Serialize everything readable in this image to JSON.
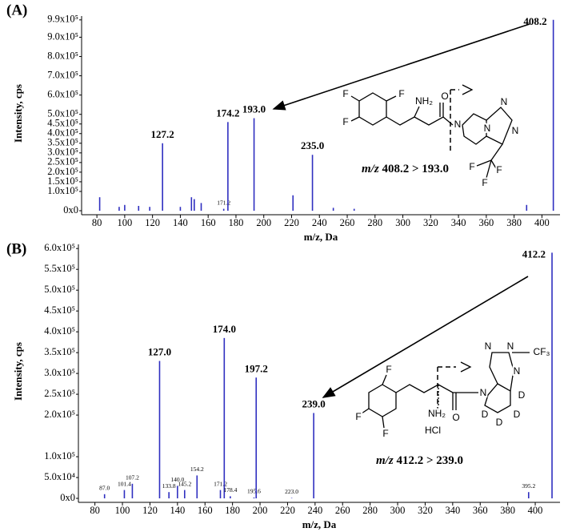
{
  "chart_data": [
    {
      "type": "stick",
      "panel_label": "(A)",
      "ylabel": "Intensity, cps",
      "xlabel": "m/z, Da",
      "color": "#2f2fc0",
      "xlim": [
        69,
        413
      ],
      "ylim": [
        0,
        1010000
      ],
      "xticks": [
        80,
        100,
        120,
        140,
        160,
        180,
        200,
        220,
        240,
        260,
        280,
        300,
        320,
        340,
        360,
        380,
        400
      ],
      "yticks": [
        {
          "value": 0,
          "label": "0x0"
        },
        {
          "value": 100000,
          "label": "1.0x10⁵"
        },
        {
          "value": 150000,
          "label": "1.5x10⁵"
        },
        {
          "value": 200000,
          "label": "2.0x10⁵"
        },
        {
          "value": 250000,
          "label": "2.5x10⁵"
        },
        {
          "value": 300000,
          "label": "3.0x10⁵"
        },
        {
          "value": 350000,
          "label": "3.5x10⁵"
        },
        {
          "value": 400000,
          "label": "4.0x10⁵"
        },
        {
          "value": 450000,
          "label": "4.5x10⁵"
        },
        {
          "value": 500000,
          "label": "5.0x10⁵"
        },
        {
          "value": 600000,
          "label": "6.0x10⁵"
        },
        {
          "value": 700000,
          "label": "7.0x10⁵"
        },
        {
          "value": 800000,
          "label": "8.0x10⁵"
        },
        {
          "value": 900000,
          "label": "9.0x10⁵"
        },
        {
          "value": 990000,
          "label": "9.9x10⁵"
        }
      ],
      "x": [
        82,
        96,
        100,
        110,
        118,
        127.2,
        140,
        148,
        150,
        155,
        171.2,
        174.2,
        193.0,
        221,
        235.0,
        250,
        265,
        389,
        408.2
      ],
      "values": [
        70000,
        20000,
        30000,
        25000,
        20000,
        350000,
        20000,
        70000,
        60000,
        40000,
        10000,
        460000,
        480000,
        80000,
        290000,
        15000,
        10000,
        30000,
        990000
      ],
      "x_labels": [
        null,
        null,
        null,
        null,
        null,
        "127.2",
        null,
        null,
        null,
        null,
        "171.2",
        "174.2",
        "193.0",
        null,
        "235.0",
        null,
        null,
        null,
        "408.2"
      ],
      "annotation_prefix": "m/z",
      "annotation": "408.2 > 193.0",
      "structure_labels": [
        "F",
        "F",
        "F",
        "NH₂",
        "O",
        "N",
        "N",
        "N",
        "N",
        "F",
        "F",
        "F"
      ]
    },
    {
      "type": "stick",
      "panel_label": "(B)",
      "ylabel": "Intensity, cps",
      "xlabel": "m/z, Da",
      "color": "#2f2fc0",
      "xlim": [
        68,
        418
      ],
      "ylim": [
        0,
        610000
      ],
      "xticks": [
        80,
        100,
        120,
        140,
        160,
        180,
        200,
        220,
        240,
        260,
        280,
        300,
        320,
        340,
        360,
        380,
        400
      ],
      "yticks": [
        {
          "value": 0,
          "label": "0x0"
        },
        {
          "value": 50000,
          "label": "5.0x10⁴"
        },
        {
          "value": 100000,
          "label": "1.0x10⁵"
        },
        {
          "value": 200000,
          "label": "2.0x10⁵"
        },
        {
          "value": 250000,
          "label": "2.5x10⁵"
        },
        {
          "value": 300000,
          "label": "3.0x10⁵"
        },
        {
          "value": 350000,
          "label": "3.5x10⁵"
        },
        {
          "value": 400000,
          "label": "4.0x10⁵"
        },
        {
          "value": 450000,
          "label": "4.5x10⁵"
        },
        {
          "value": 500000,
          "label": "5.0x10⁵"
        },
        {
          "value": 550000,
          "label": "5.5x10⁵"
        },
        {
          "value": 600000,
          "label": "6.0x10⁵"
        }
      ],
      "x": [
        87.0,
        101.4,
        107.2,
        127.0,
        133.8,
        140.0,
        145.2,
        154.2,
        171.2,
        174.0,
        178.4,
        195.6,
        197.2,
        223.0,
        239.0,
        395.2,
        412.2
      ],
      "values": [
        10000,
        20000,
        35000,
        330000,
        15000,
        30000,
        20000,
        55000,
        20000,
        385000,
        5000,
        2000,
        290000,
        1000,
        205000,
        15000,
        590000
      ],
      "x_labels": [
        "87.0",
        "101.4",
        "107.2",
        "127.0",
        "133.8",
        "140.0",
        "145.2",
        "154.2",
        "171.2",
        "174.0",
        "178.4",
        "195.6",
        "197.2",
        "223.0",
        "239.0",
        "395.2",
        "412.2"
      ],
      "annotation_prefix": "m/z",
      "annotation": "412.2 > 239.0",
      "structure_labels": [
        "F",
        "F",
        "F",
        "NH₂",
        "HCl",
        "O",
        "N",
        "N",
        "N",
        "N",
        "CF₃",
        "D",
        "D",
        "D",
        "D"
      ]
    }
  ]
}
